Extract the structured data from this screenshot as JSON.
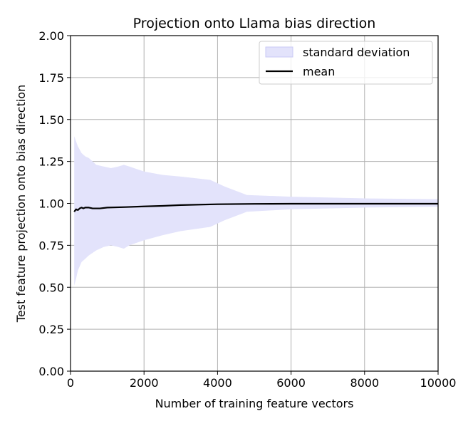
{
  "chart_data": {
    "type": "line",
    "title": "Projection onto Llama bias direction",
    "xlabel": "Number of training feature vectors",
    "ylabel": "Test feature projection onto bias direction",
    "xlim": [
      0,
      10000
    ],
    "ylim": [
      0,
      2.0
    ],
    "xticks": [
      0,
      2000,
      4000,
      6000,
      8000,
      10000
    ],
    "xtick_labels": [
      "0",
      "2000",
      "4000",
      "6000",
      "8000",
      "10000"
    ],
    "yticks": [
      0,
      0.25,
      0.5,
      0.75,
      1.0,
      1.25,
      1.5,
      1.75,
      2.0
    ],
    "ytick_labels": [
      "0.00",
      "0.25",
      "0.50",
      "0.75",
      "1.00",
      "1.25",
      "1.50",
      "1.75",
      "2.00"
    ],
    "grid": true,
    "legend": "top-right",
    "colors": {
      "band": "#e3e3fb",
      "mean": "#000000",
      "grid": "#b0b0b0"
    },
    "series": [
      {
        "name": "standard deviation",
        "kind": "band",
        "x": [
          100,
          150,
          200,
          300,
          400,
          500,
          700,
          900,
          1100,
          1300,
          1450,
          1600,
          2000,
          2500,
          3000,
          3800,
          4200,
          4800,
          6000,
          8000,
          10000
        ],
        "upper": [
          1.4,
          1.37,
          1.34,
          1.3,
          1.28,
          1.27,
          1.23,
          1.22,
          1.21,
          1.22,
          1.23,
          1.22,
          1.19,
          1.17,
          1.16,
          1.14,
          1.1,
          1.05,
          1.04,
          1.03,
          1.025
        ],
        "lower": [
          0.51,
          0.55,
          0.6,
          0.65,
          0.67,
          0.69,
          0.72,
          0.74,
          0.75,
          0.74,
          0.73,
          0.75,
          0.78,
          0.81,
          0.835,
          0.86,
          0.9,
          0.95,
          0.965,
          0.975,
          0.98
        ]
      },
      {
        "name": "mean",
        "kind": "line",
        "x": [
          100,
          150,
          200,
          250,
          300,
          350,
          400,
          500,
          600,
          800,
          1000,
          1500,
          2000,
          2500,
          3000,
          4000,
          5000,
          6000,
          8000,
          10000
        ],
        "values": [
          0.95,
          0.965,
          0.96,
          0.97,
          0.975,
          0.97,
          0.975,
          0.975,
          0.97,
          0.97,
          0.975,
          0.978,
          0.982,
          0.985,
          0.99,
          0.995,
          0.997,
          0.998,
          0.998,
          0.998
        ]
      }
    ]
  }
}
